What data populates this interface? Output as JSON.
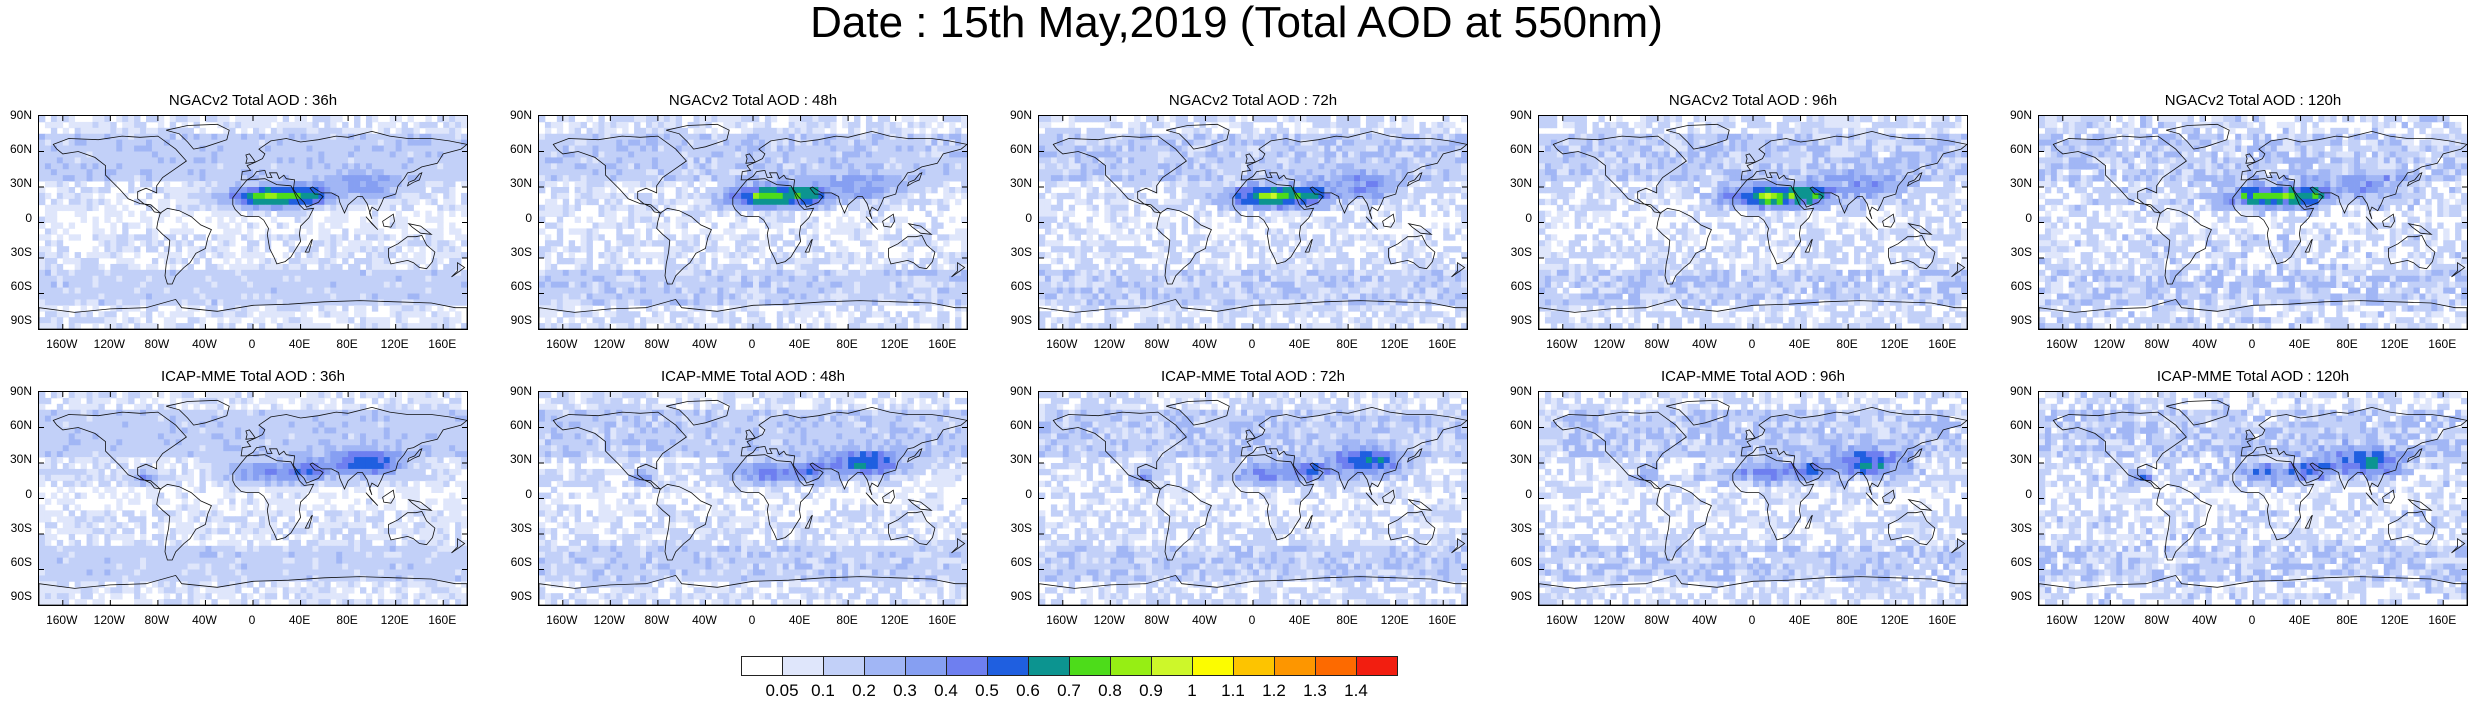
{
  "figure": {
    "title": "Date : 15th May,2019 (Total AOD at 550nm)"
  },
  "panels": [
    {
      "title": "NGACv2 Total AOD : 36h",
      "row": 0,
      "col": 0
    },
    {
      "title": "NGACv2 Total AOD : 48h",
      "row": 0,
      "col": 1
    },
    {
      "title": "NGACv2 Total AOD : 72h",
      "row": 0,
      "col": 2
    },
    {
      "title": "NGACv2 Total AOD : 96h",
      "row": 0,
      "col": 3
    },
    {
      "title": "NGACv2 Total AOD : 120h",
      "row": 0,
      "col": 4
    },
    {
      "title": "ICAP-MME Total AOD : 36h",
      "row": 1,
      "col": 0
    },
    {
      "title": "ICAP-MME Total AOD : 48h",
      "row": 1,
      "col": 1
    },
    {
      "title": "ICAP-MME Total AOD : 72h",
      "row": 1,
      "col": 2
    },
    {
      "title": "ICAP-MME Total AOD : 96h",
      "row": 1,
      "col": 3
    },
    {
      "title": "ICAP-MME Total AOD : 120h",
      "row": 1,
      "col": 4
    }
  ],
  "lat_labels": [
    "90N",
    "60N",
    "30N",
    "0",
    "30S",
    "60S",
    "90S"
  ],
  "lon_labels": [
    "160W",
    "120W",
    "80W",
    "40W",
    "0",
    "40E",
    "80E",
    "120E",
    "160E"
  ],
  "colorbar": {
    "labels": [
      "0.05",
      "0.1",
      "0.2",
      "0.3",
      "0.4",
      "0.5",
      "0.6",
      "0.7",
      "0.8",
      "0.9",
      "1",
      "1.1",
      "1.2",
      "1.3",
      "1.4"
    ],
    "colors": [
      "#ffffff",
      "#dfe6fb",
      "#c2d0f8",
      "#a1b6f5",
      "#869ff2",
      "#6e7ff0",
      "#1f5fe0",
      "#0c9490",
      "#4ddc1a",
      "#96ee14",
      "#cdf72a",
      "#fcfc00",
      "#fdc400",
      "#fd9600",
      "#fd6a00",
      "#f21e10"
    ]
  }
}
